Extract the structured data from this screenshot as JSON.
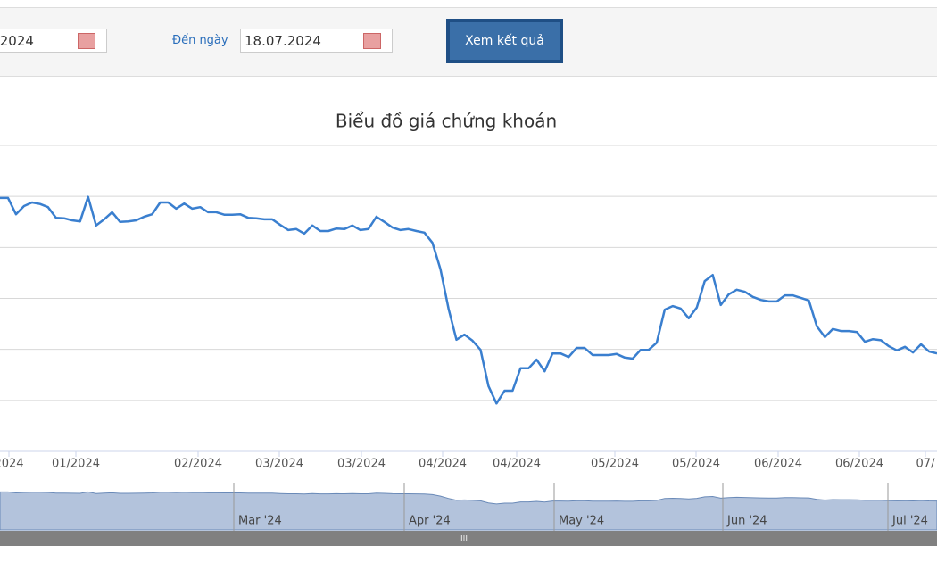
{
  "form": {
    "from_value": ".2024",
    "to_label": "Đến ngày",
    "to_value": "18.07.2024",
    "submit": "Xem kết quả"
  },
  "chart_data": {
    "type": "line",
    "title": "Biểu đồ giá chứng khoán",
    "color": "#3a7fcf",
    "x_labels": [
      "2024",
      "01/2024",
      "02/2024",
      "03/2024",
      "03/2024",
      "04/2024",
      "04/2024",
      "05/2024",
      "05/2024",
      "06/2024",
      "06/2024",
      "07/"
    ],
    "values": [
      4.97,
      4.97,
      4.65,
      4.81,
      4.88,
      4.85,
      4.79,
      4.58,
      4.57,
      4.53,
      4.51,
      4.99,
      4.43,
      4.55,
      4.69,
      4.5,
      4.51,
      4.53,
      4.6,
      4.65,
      4.88,
      4.88,
      4.76,
      4.86,
      4.76,
      4.79,
      4.69,
      4.69,
      4.64,
      4.64,
      4.65,
      4.58,
      4.57,
      4.55,
      4.55,
      4.44,
      4.34,
      4.36,
      4.27,
      4.43,
      4.32,
      4.32,
      4.37,
      4.36,
      4.43,
      4.34,
      4.36,
      4.6,
      4.5,
      4.39,
      4.34,
      4.36,
      4.32,
      4.29,
      4.09,
      3.57,
      2.8,
      2.19,
      2.29,
      2.17,
      1.99,
      1.28,
      0.94,
      1.19,
      1.19,
      1.63,
      1.63,
      1.8,
      1.57,
      1.92,
      1.92,
      1.85,
      2.03,
      2.03,
      1.89,
      1.89,
      1.89,
      1.91,
      1.84,
      1.82,
      1.99,
      1.99,
      2.13,
      2.78,
      2.85,
      2.8,
      2.61,
      2.82,
      3.34,
      3.46,
      2.87,
      3.08,
      3.17,
      3.13,
      3.03,
      2.97,
      2.94,
      2.94,
      3.06,
      3.06,
      3.01,
      2.96,
      2.45,
      2.24,
      2.4,
      2.36,
      2.36,
      2.34,
      2.15,
      2.2,
      2.18,
      2.06,
      1.98,
      2.05,
      1.94,
      2.1,
      1.96,
      1.92
    ],
    "ylim": [
      0,
      6
    ],
    "ygrid": [
      0,
      1,
      2,
      3,
      4,
      5,
      6
    ],
    "navigator_labels": [
      "Mar '24",
      "Apr '24",
      "May '24",
      "Jun '24",
      "Jul '24"
    ]
  }
}
